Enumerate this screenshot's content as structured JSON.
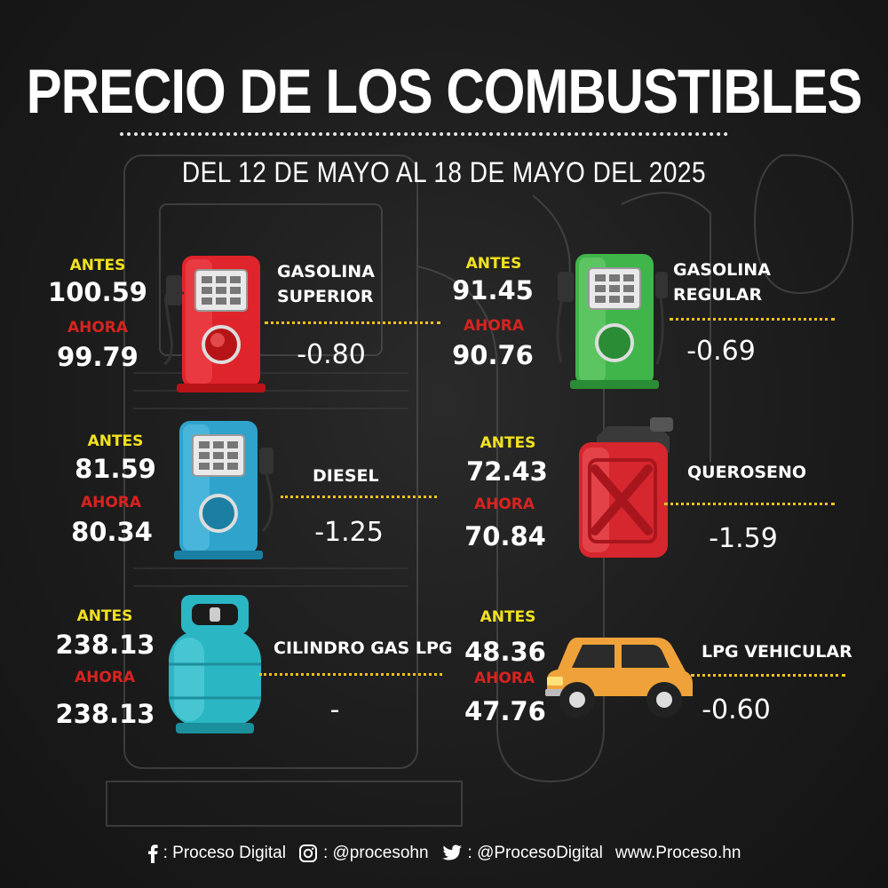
{
  "header": {
    "title": "PRECIO DE LOS COMBUSTIBLES",
    "subtitle": "DEL 12 DE MAYO AL 18 DE MAYO DEL 2025"
  },
  "labels": {
    "before": "ANTES",
    "now": "AHORA"
  },
  "fuels": [
    {
      "name_line1": "GASOLINA",
      "name_line2": "SUPERIOR",
      "before": "100.59",
      "now": "99.79",
      "diff": "-0.80",
      "icon": "red-fuel-pump-icon",
      "color": "#e0242b"
    },
    {
      "name_line1": "GASOLINA",
      "name_line2": "REGULAR",
      "before": "91.45",
      "now": "90.76",
      "diff": "-0.69",
      "icon": "green-fuel-pump-icon",
      "color": "#3fb54a"
    },
    {
      "name_line1": "DIESEL",
      "name_line2": "",
      "before": "81.59",
      "now": "80.34",
      "diff": "-1.25",
      "icon": "blue-fuel-pump-icon",
      "color": "#2fa3cc"
    },
    {
      "name_line1": "QUEROSENO",
      "name_line2": "",
      "before": "72.43",
      "now": "70.84",
      "diff": "-1.59",
      "icon": "jerry-can-icon",
      "color": "#d6262e"
    },
    {
      "name_line1": "CILINDRO GAS LPG",
      "name_line2": "",
      "before": "238.13",
      "now": "238.13",
      "diff": "-",
      "icon": "gas-cylinder-icon",
      "color": "#2bb6c4"
    },
    {
      "name_line1": "LPG VEHICULAR",
      "name_line2": "",
      "before": "48.36",
      "now": "47.76",
      "diff": "-0.60",
      "icon": "car-icon",
      "color": "#f0a23a"
    }
  ],
  "footer": {
    "facebook": ": Proceso Digital",
    "instagram": ": @procesohn",
    "twitter": ": @ProcesoDigital",
    "website": "www.Proceso.hn"
  },
  "colors": {
    "before_label": "#f2e21f",
    "now_label": "#d8231f",
    "dotted_rule": "#f2c21c",
    "background": "#1b1b1b"
  }
}
